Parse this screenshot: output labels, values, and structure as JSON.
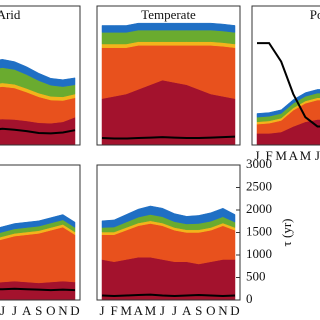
{
  "chart_data": [
    {
      "type": "area",
      "title": "Arid",
      "ylim": [
        0,
        3000
      ],
      "series": [
        {
          "color": "#a3122d",
          "values": [
            450,
            420,
            430,
            480,
            550,
            560,
            550,
            520,
            480,
            470,
            500,
            600
          ]
        },
        {
          "color": "#e8511d",
          "values": [
            400,
            450,
            520,
            620,
            680,
            700,
            680,
            620,
            560,
            500,
            460,
            420
          ]
        },
        {
          "color": "#f3b41b",
          "values": [
            80,
            80,
            80,
            80,
            80,
            80,
            80,
            80,
            80,
            80,
            80,
            80
          ]
        },
        {
          "color": "#6aab2f",
          "values": [
            200,
            220,
            260,
            300,
            320,
            330,
            320,
            300,
            270,
            240,
            220,
            200
          ]
        },
        {
          "color": "#1f6fc4",
          "values": [
            150,
            160,
            170,
            180,
            180,
            180,
            170,
            170,
            160,
            150,
            150,
            150
          ]
        }
      ],
      "line": {
        "color": "#000000",
        "values": [
          300,
          280,
          270,
          290,
          320,
          350,
          330,
          300,
          260,
          250,
          270,
          320
        ]
      }
    },
    {
      "type": "area",
      "title": "Temperate",
      "ylim": [
        0,
        3000
      ],
      "series": [
        {
          "color": "#a3122d",
          "values": [
            1000,
            1050,
            1100,
            1200,
            1300,
            1400,
            1350,
            1300,
            1200,
            1100,
            1050,
            1000
          ]
        },
        {
          "color": "#e8511d",
          "values": [
            1100,
            1050,
            1000,
            950,
            850,
            750,
            800,
            850,
            950,
            1050,
            1080,
            1100
          ]
        },
        {
          "color": "#f3b41b",
          "values": [
            80,
            80,
            80,
            80,
            80,
            80,
            80,
            80,
            80,
            80,
            80,
            80
          ]
        },
        {
          "color": "#6aab2f",
          "values": [
            250,
            250,
            250,
            250,
            250,
            250,
            250,
            250,
            250,
            250,
            250,
            250
          ]
        },
        {
          "color": "#1f6fc4",
          "values": [
            150,
            150,
            150,
            150,
            150,
            150,
            150,
            150,
            150,
            150,
            150,
            150
          ]
        }
      ],
      "line": {
        "color": "#000000",
        "values": [
          150,
          140,
          140,
          150,
          160,
          170,
          160,
          150,
          150,
          160,
          170,
          180
        ]
      }
    },
    {
      "type": "area",
      "title": "Polar",
      "ylim": [
        0,
        3000
      ],
      "categories": [
        "J",
        "F",
        "M",
        "A",
        "M",
        "J",
        "J",
        "A",
        "S",
        "O",
        "N",
        "D"
      ],
      "series": [
        {
          "color": "#a3122d",
          "values": [
            250,
            250,
            280,
            400,
            500,
            550,
            550,
            500,
            450,
            350,
            280,
            250
          ]
        },
        {
          "color": "#e8511d",
          "values": [
            200,
            220,
            250,
            350,
            400,
            420,
            420,
            400,
            350,
            300,
            250,
            200
          ]
        },
        {
          "color": "#f3b41b",
          "values": [
            50,
            50,
            50,
            50,
            50,
            50,
            50,
            50,
            50,
            50,
            50,
            50
          ]
        },
        {
          "color": "#6aab2f",
          "values": [
            100,
            100,
            100,
            100,
            100,
            100,
            100,
            100,
            100,
            100,
            100,
            100
          ]
        },
        {
          "color": "#1f6fc4",
          "values": [
            80,
            80,
            80,
            80,
            80,
            80,
            80,
            80,
            80,
            80,
            80,
            80
          ]
        }
      ],
      "line": {
        "color": "#000000",
        "values": [
          2200,
          2200,
          1800,
          1100,
          600,
          400,
          400,
          600,
          1000,
          1600,
          2000,
          2200
        ]
      }
    },
    {
      "type": "area",
      "ylim": [
        0,
        3000
      ],
      "categories": [
        "J",
        "F",
        "M",
        "A",
        "M",
        "J",
        "J",
        "A",
        "S",
        "O",
        "N",
        "D"
      ],
      "series": [
        {
          "color": "#a3122d",
          "values": [
            300,
            300,
            320,
            350,
            380,
            400,
            420,
            400,
            380,
            400,
            420,
            400
          ]
        },
        {
          "color": "#e8511d",
          "values": [
            700,
            750,
            800,
            850,
            900,
            950,
            1000,
            1050,
            1100,
            1150,
            1200,
            1050
          ]
        },
        {
          "color": "#f3b41b",
          "values": [
            60,
            60,
            60,
            60,
            60,
            60,
            60,
            60,
            60,
            60,
            60,
            60
          ]
        },
        {
          "color": "#6aab2f",
          "values": [
            100,
            100,
            100,
            100,
            100,
            100,
            100,
            100,
            100,
            100,
            100,
            100
          ]
        },
        {
          "color": "#1f6fc4",
          "values": [
            120,
            120,
            120,
            120,
            120,
            120,
            120,
            120,
            120,
            120,
            120,
            120
          ]
        }
      ],
      "line": {
        "color": "#000000",
        "values": [
          200,
          200,
          210,
          220,
          230,
          240,
          250,
          240,
          230,
          220,
          230,
          220
        ]
      }
    },
    {
      "type": "area",
      "ylim": [
        0,
        3000
      ],
      "yticks": [
        0,
        500,
        1000,
        1500,
        2000,
        2500,
        3000
      ],
      "y_label": "τ (yr)",
      "categories": [
        "J",
        "F",
        "M",
        "A",
        "M",
        "J",
        "J",
        "A",
        "S",
        "O",
        "N",
        "D"
      ],
      "series": [
        {
          "color": "#a3122d",
          "values": [
            900,
            850,
            900,
            950,
            950,
            900,
            850,
            850,
            800,
            850,
            900,
            900
          ]
        },
        {
          "color": "#e8511d",
          "values": [
            550,
            600,
            650,
            700,
            750,
            750,
            700,
            650,
            700,
            700,
            750,
            650
          ]
        },
        {
          "color": "#f3b41b",
          "values": [
            60,
            60,
            60,
            60,
            60,
            60,
            60,
            60,
            60,
            60,
            60,
            60
          ]
        },
        {
          "color": "#6aab2f",
          "values": [
            100,
            110,
            120,
            130,
            140,
            140,
            130,
            130,
            140,
            140,
            140,
            120
          ]
        },
        {
          "color": "#1f6fc4",
          "values": [
            150,
            160,
            170,
            180,
            190,
            190,
            180,
            170,
            180,
            190,
            190,
            170
          ]
        }
      ],
      "line": {
        "color": "#000000",
        "values": [
          100,
          90,
          100,
          110,
          120,
          100,
          90,
          100,
          110,
          100,
          90,
          100
        ]
      }
    }
  ]
}
